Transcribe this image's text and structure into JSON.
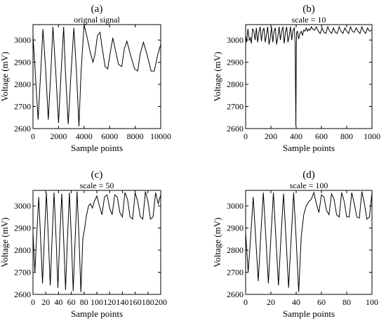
{
  "chart_data": [
    {
      "panel": "(a)",
      "type": "line",
      "title": "orignal signal",
      "xlabel": "Sample points",
      "ylabel": "Voltage (mV)",
      "xlim": [
        0,
        10000
      ],
      "ylim": [
        2600,
        3070
      ],
      "xticks": [
        0,
        2000,
        4000,
        6000,
        8000,
        10000
      ],
      "yticks": [
        2600,
        2700,
        2800,
        2900,
        3000
      ],
      "xtick_labels": [
        "0",
        "2000",
        "4000",
        "6000",
        "8000",
        "10000"
      ],
      "ytick_labels": [
        "2600",
        "2700",
        "2800",
        "2900",
        "3000"
      ],
      "series": [
        {
          "x": [
            0,
            180,
            400,
            600,
            780,
            1000,
            1200,
            1400,
            1560,
            1780,
            2000,
            2200,
            2400,
            2540,
            2760,
            2980,
            3200,
            3400,
            3600,
            3760,
            4000,
            4250,
            4500,
            4700,
            4850,
            5050,
            5250,
            5400,
            5650,
            5850,
            6100,
            6250,
            6450,
            6700,
            6950,
            7150,
            7350,
            7650,
            7950,
            8200,
            8400,
            8650,
            8950,
            9250,
            9500,
            9750,
            10000
          ],
          "y": [
            3020,
            2850,
            2640,
            2850,
            3050,
            2860,
            2640,
            2860,
            3060,
            2860,
            2625,
            2850,
            3060,
            2860,
            2620,
            2850,
            3055,
            2860,
            2610,
            2850,
            3070,
            3010,
            2940,
            2900,
            2935,
            3020,
            3035,
            2970,
            2880,
            2870,
            2960,
            3010,
            2955,
            2890,
            2880,
            2960,
            2995,
            2930,
            2870,
            2860,
            2940,
            2990,
            2930,
            2860,
            2860,
            2930,
            2980
          ]
        }
      ]
    },
    {
      "panel": "(b)",
      "type": "line",
      "title": "scale = 10",
      "xlabel": "Sample points",
      "ylabel": "Voltage (mV)",
      "xlim": [
        0,
        1000
      ],
      "ylim": [
        2600,
        3070
      ],
      "xticks": [
        0,
        200,
        400,
        600,
        800,
        1000
      ],
      "yticks": [
        2600,
        2700,
        2800,
        2900,
        3000
      ],
      "xtick_labels": [
        "0",
        "200",
        "400",
        "600",
        "800",
        "1000"
      ],
      "ytick_labels": [
        "2600",
        "2700",
        "2800",
        "2900",
        "3000"
      ],
      "series": [
        {
          "x": [
            0,
            8,
            18,
            30,
            38,
            45,
            55,
            65,
            75,
            85,
            95,
            105,
            115,
            125,
            135,
            145,
            155,
            165,
            175,
            185,
            195,
            205,
            215,
            225,
            235,
            245,
            255,
            265,
            275,
            285,
            295,
            305,
            315,
            325,
            335,
            345,
            355,
            365,
            375,
            385,
            392,
            395,
            398,
            401,
            404,
            410,
            420,
            430,
            440,
            450,
            460,
            470,
            480,
            490,
            500,
            510,
            520,
            530,
            545,
            560,
            575,
            590,
            605,
            620,
            635,
            650,
            665,
            680,
            695,
            710,
            725,
            740,
            755,
            770,
            785,
            800,
            815,
            830,
            845,
            860,
            875,
            890,
            905,
            920,
            935,
            950,
            965,
            980,
            1000
          ],
          "y": [
            3020,
            2990,
            3050,
            3000,
            3010,
            2985,
            3050,
            3040,
            3000,
            3055,
            2990,
            3035,
            3060,
            2995,
            3040,
            3055,
            2990,
            3025,
            3060,
            2980,
            3010,
            3060,
            2990,
            3040,
            3055,
            2980,
            3015,
            3060,
            3000,
            3040,
            3060,
            2985,
            3035,
            3060,
            2990,
            3020,
            3060,
            3000,
            3045,
            3055,
            2985,
            2780,
            2610,
            2960,
            3035,
            3040,
            3005,
            3030,
            3040,
            3020,
            3045,
            3040,
            3055,
            3040,
            3050,
            3045,
            3060,
            3050,
            3045,
            3060,
            3040,
            3030,
            3055,
            3035,
            3030,
            3060,
            3040,
            3030,
            3055,
            3035,
            3030,
            3060,
            3040,
            3030,
            3055,
            3040,
            3030,
            3060,
            3040,
            3035,
            3055,
            3040,
            3030,
            3060,
            3040,
            3030,
            3055,
            3040,
            3045
          ]
        }
      ]
    },
    {
      "panel": "(c)",
      "type": "line",
      "title": "scale = 50",
      "xlabel": "Sample points",
      "ylabel": "Voltage (mV)",
      "xlim": [
        0,
        200
      ],
      "ylim": [
        2600,
        3070
      ],
      "xticks": [
        0,
        20,
        40,
        60,
        80,
        100,
        120,
        140,
        160,
        180,
        200
      ],
      "yticks": [
        2600,
        2700,
        2800,
        2900,
        3000
      ],
      "xtick_labels": [
        "0",
        "20",
        "40",
        "60",
        "80",
        "100",
        "120",
        "140",
        "160",
        "180",
        "200"
      ],
      "ytick_labels": [
        "2600",
        "2700",
        "2800",
        "2900",
        "3000"
      ],
      "series": [
        {
          "x": [
            0,
            3,
            6,
            9,
            12,
            15,
            18,
            21,
            24,
            27,
            30,
            33,
            36,
            39,
            42,
            45,
            48,
            51,
            54,
            57,
            60,
            63,
            66,
            69,
            72,
            75,
            78,
            81,
            84,
            87,
            90,
            93,
            96,
            100,
            104,
            108,
            112,
            116,
            120,
            124,
            128,
            132,
            136,
            140,
            144,
            148,
            152,
            156,
            160,
            164,
            168,
            172,
            176,
            180,
            184,
            188,
            192,
            196,
            200
          ],
          "y": [
            2880,
            2700,
            2880,
            3040,
            2850,
            2650,
            2870,
            3060,
            2860,
            2640,
            2860,
            3060,
            2860,
            2630,
            2860,
            3055,
            2850,
            2620,
            2850,
            3060,
            2860,
            2615,
            2850,
            3065,
            2860,
            2610,
            2850,
            2900,
            2960,
            3000,
            3010,
            2990,
            3020,
            3045,
            3000,
            2960,
            3040,
            3050,
            2990,
            2960,
            3050,
            3040,
            2970,
            2950,
            3060,
            3030,
            2950,
            2940,
            3060,
            3020,
            2950,
            2940,
            3065,
            3020,
            2940,
            2950,
            3060,
            3010,
            3050
          ]
        }
      ]
    },
    {
      "panel": "(d)",
      "type": "line",
      "title": "scale = 100",
      "xlabel": "Sample points",
      "ylabel": "Voltage (mV)",
      "xlim": [
        0,
        100
      ],
      "ylim": [
        2600,
        3070
      ],
      "xticks": [
        0,
        20,
        40,
        60,
        80,
        100
      ],
      "yticks": [
        2600,
        2700,
        2800,
        2900,
        3000
      ],
      "xtick_labels": [
        "0",
        "20",
        "40",
        "60",
        "80",
        "100"
      ],
      "ytick_labels": [
        "2600",
        "2700",
        "2800",
        "2900",
        "3000"
      ],
      "series": [
        {
          "x": [
            0,
            2,
            4,
            6,
            8,
            10,
            12,
            14,
            16,
            18,
            20,
            22,
            24,
            26,
            28,
            30,
            32,
            34,
            36,
            38,
            40,
            42,
            44,
            46,
            48,
            50,
            52,
            54,
            56,
            58,
            60,
            62,
            64,
            66,
            68,
            70,
            72,
            74,
            76,
            78,
            80,
            82,
            84,
            86,
            88,
            90,
            92,
            94,
            96,
            98,
            100
          ],
          "y": [
            2880,
            2700,
            2860,
            3040,
            2850,
            2660,
            2870,
            3060,
            2860,
            2650,
            2860,
            3060,
            2850,
            2640,
            2860,
            3055,
            2850,
            2630,
            2850,
            3060,
            2850,
            2610,
            2860,
            2960,
            3000,
            3020,
            3030,
            3060,
            3010,
            2970,
            3050,
            3040,
            2980,
            2960,
            3055,
            3030,
            2960,
            2950,
            3060,
            3020,
            2950,
            2950,
            3060,
            3010,
            2950,
            2945,
            3065,
            3010,
            2940,
            2950,
            3060
          ]
        }
      ]
    }
  ]
}
